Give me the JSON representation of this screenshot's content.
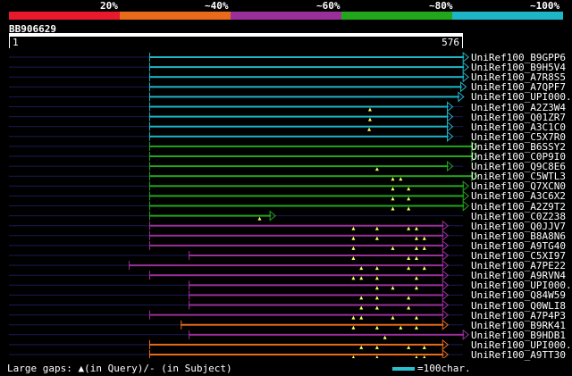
{
  "legend": {
    "segments": [
      {
        "label": "20%",
        "color": "#e8192c"
      },
      {
        "label": "~40%",
        "color": "#e86a1a"
      },
      {
        "label": "~60%",
        "color": "#9a2f9a"
      },
      {
        "label": "~80%",
        "color": "#22a61c"
      },
      {
        "label": "~100%",
        "color": "#1eb5c6"
      }
    ]
  },
  "query": {
    "id": "BB906629",
    "start": "1",
    "end": "576",
    "length": 576
  },
  "hits": [
    {
      "name": "UniRef100_B9GPP6",
      "color": "#1eb5c6",
      "start": 178,
      "end": 583,
      "marks": []
    },
    {
      "name": "UniRef100_B9H5V4",
      "color": "#1eb5c6",
      "start": 178,
      "end": 583,
      "marks": []
    },
    {
      "name": "UniRef100_A7R8S5",
      "color": "#1eb5c6",
      "start": 178,
      "end": 583,
      "marks": []
    },
    {
      "name": "UniRef100_A7QPF7",
      "color": "#1eb5c6",
      "start": 178,
      "end": 580,
      "marks": []
    },
    {
      "name": "UniRef100_UPI000...",
      "color": "#1eb5c6",
      "start": 178,
      "end": 577,
      "marks": []
    },
    {
      "name": "UniRef100_A2Z3W4",
      "color": "#1eb5c6",
      "start": 178,
      "end": 563,
      "marks": [
        458
      ]
    },
    {
      "name": "UniRef100_Q01ZR7",
      "color": "#1eb5c6",
      "start": 178,
      "end": 563,
      "marks": [
        458
      ]
    },
    {
      "name": "UniRef100_A3C1C0",
      "color": "#1eb5c6",
      "start": 178,
      "end": 563,
      "marks": [
        457
      ]
    },
    {
      "name": "UniRef100_C5X7R0",
      "color": "#1eb5c6",
      "start": 178,
      "end": 563,
      "marks": []
    },
    {
      "name": "UniRef100_B6SSY2",
      "color": "#22a61c",
      "start": 178,
      "end": 594,
      "marks": []
    },
    {
      "name": "UniRef100_C0P9I0",
      "color": "#22a61c",
      "start": 178,
      "end": 594,
      "marks": []
    },
    {
      "name": "UniRef100_Q9C8E6",
      "color": "#22a61c",
      "start": 178,
      "end": 563,
      "marks": [
        467
      ]
    },
    {
      "name": "UniRef100_C5WTL3",
      "color": "#22a61c",
      "start": 178,
      "end": 594,
      "marks": [
        487,
        497
      ]
    },
    {
      "name": "UniRef100_Q7XCN0",
      "color": "#22a61c",
      "start": 178,
      "end": 583,
      "marks": [
        487,
        507
      ]
    },
    {
      "name": "UniRef100_A3C6X2",
      "color": "#22a61c",
      "start": 178,
      "end": 583,
      "marks": [
        487,
        507
      ]
    },
    {
      "name": "UniRef100_A2Z9T2",
      "color": "#22a61c",
      "start": 178,
      "end": 583,
      "marks": [
        487,
        507
      ]
    },
    {
      "name": "UniRef100_C0Z238",
      "color": "#22a61c",
      "start": 178,
      "end": 338,
      "marks": [
        318
      ]
    },
    {
      "name": "UniRef100_Q0JJV7",
      "color": "#9a2f9a",
      "start": 178,
      "end": 557,
      "marks": [
        437,
        467,
        507,
        517
      ]
    },
    {
      "name": "UniRef100_B8A8N6",
      "color": "#9a2f9a",
      "start": 178,
      "end": 557,
      "marks": [
        437,
        467,
        517,
        527
      ]
    },
    {
      "name": "UniRef100_A9TG40",
      "color": "#9a2f9a",
      "start": 178,
      "end": 557,
      "marks": [
        437,
        487,
        517,
        527
      ]
    },
    {
      "name": "UniRef100_C5XI97",
      "color": "#9a2f9a",
      "start": 228,
      "end": 557,
      "marks": [
        437,
        507,
        517
      ]
    },
    {
      "name": "UniRef100_A7PE22",
      "color": "#9a2f9a",
      "start": 152,
      "end": 557,
      "marks": [
        447,
        467,
        507,
        527
      ]
    },
    {
      "name": "UniRef100_A9RVN4",
      "color": "#9a2f9a",
      "start": 178,
      "end": 557,
      "marks": [
        437,
        447,
        467,
        517
      ]
    },
    {
      "name": "UniRef100_UPI000...",
      "color": "#9a2f9a",
      "start": 228,
      "end": 557,
      "marks": [
        467,
        487,
        517
      ]
    },
    {
      "name": "UniRef100_Q84W59",
      "color": "#9a2f9a",
      "start": 228,
      "end": 557,
      "marks": [
        447,
        467,
        507
      ]
    },
    {
      "name": "UniRef100_Q0WLI8",
      "color": "#9a2f9a",
      "start": 228,
      "end": 557,
      "marks": [
        447,
        467,
        507
      ]
    },
    {
      "name": "UniRef100_A7P4P3",
      "color": "#9a2f9a",
      "start": 178,
      "end": 557,
      "marks": [
        437,
        447,
        487,
        517
      ]
    },
    {
      "name": "UniRef100_B9RK41",
      "color": "#e86a1a",
      "start": 218,
      "end": 557,
      "marks": [
        437,
        467,
        497,
        517
      ]
    },
    {
      "name": "UniRef100_B9HDB1",
      "color": "#9a2f9a",
      "start": 228,
      "end": 583,
      "marks": [
        477
      ]
    },
    {
      "name": "UniRef100_UPI000...",
      "color": "#e86a1a",
      "start": 178,
      "end": 557,
      "marks": [
        447,
        467,
        507,
        527
      ]
    },
    {
      "name": "UniRef100_A9TT30",
      "color": "#e86a1a",
      "start": 178,
      "end": 557,
      "marks": [
        437,
        467,
        517,
        527
      ]
    }
  ],
  "footer": {
    "text": "Large gaps: ▲(in Query)/- (in Subject)",
    "scale": "=100char."
  }
}
